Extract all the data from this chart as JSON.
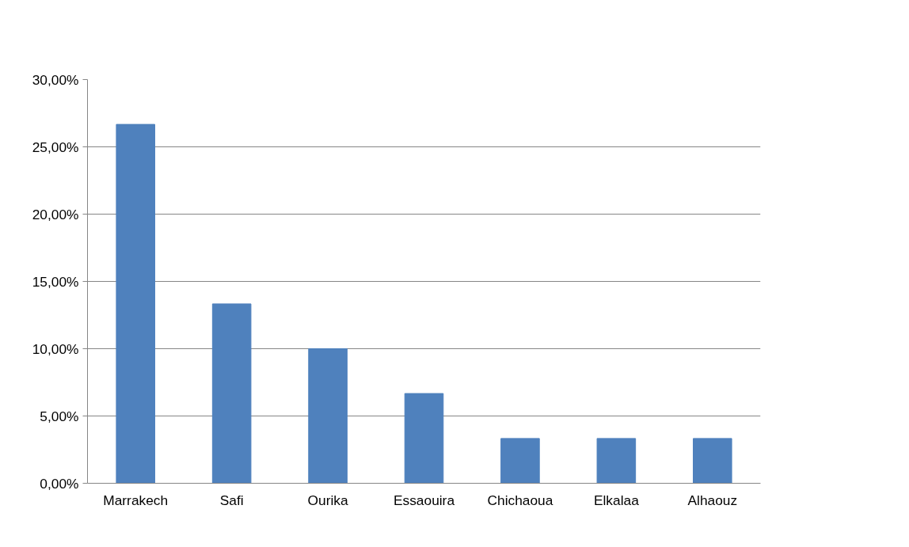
{
  "chart_data": {
    "type": "bar",
    "categories": [
      "Marrakech",
      "Safi",
      "Ourika",
      "Essaouira",
      "Chichaoua",
      "Elkalaa",
      "Alhaouz"
    ],
    "values": [
      26.67,
      13.33,
      10,
      6.67,
      3.33,
      3.33,
      3.33
    ],
    "color": "#4f81bd",
    "ylim": [
      0,
      30
    ],
    "yticks": [
      {
        "value": 0,
        "label": "0,00%"
      },
      {
        "value": 5,
        "label": "5,00%"
      },
      {
        "value": 10,
        "label": "10,00%"
      },
      {
        "value": 15,
        "label": "15,00%"
      },
      {
        "value": 20,
        "label": "20,00%"
      },
      {
        "value": 25,
        "label": "25,00%"
      },
      {
        "value": 30,
        "label": "30,00%"
      }
    ],
    "grid": "y"
  }
}
